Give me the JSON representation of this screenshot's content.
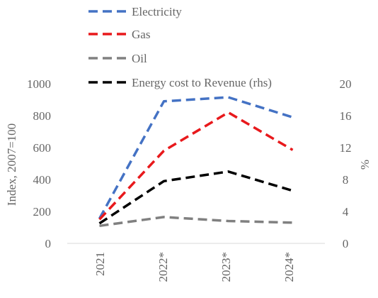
{
  "chart_data": {
    "type": "line",
    "categories": [
      "2021",
      "2022*",
      "2023*",
      "2024*"
    ],
    "ylabel": "Index, 2007=100",
    "y2label": "%",
    "ylim": [
      0,
      1000
    ],
    "yticks": [
      "0",
      "200",
      "400",
      "600",
      "800",
      "1000"
    ],
    "y2lim": [
      0,
      20
    ],
    "y2ticks": [
      "0",
      "4",
      "8",
      "12",
      "16",
      "20"
    ],
    "grid": false,
    "legend_position": "top",
    "series": [
      {
        "name": "Electricity",
        "axis": "left",
        "color": "#4472C4",
        "values": [
          155,
          890,
          915,
          790
        ]
      },
      {
        "name": "Gas",
        "axis": "left",
        "color": "#E8191C",
        "values": [
          150,
          580,
          820,
          585
        ]
      },
      {
        "name": "Oil",
        "axis": "left",
        "color": "#808080",
        "values": [
          110,
          165,
          140,
          130
        ]
      },
      {
        "name": "Energy cost to Revenue (rhs)",
        "axis": "right",
        "color": "#000000",
        "values": [
          2.5,
          7.8,
          9.0,
          6.6
        ]
      }
    ]
  }
}
